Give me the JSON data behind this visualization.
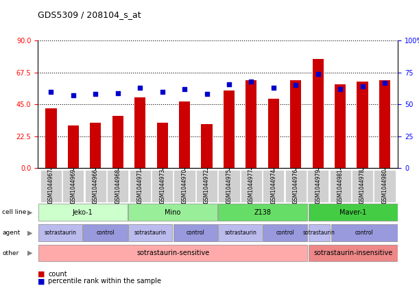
{
  "title": "GDS5309 / 208104_s_at",
  "samples": [
    "GSM1044967",
    "GSM1044969",
    "GSM1044966",
    "GSM1044968",
    "GSM1044971",
    "GSM1044973",
    "GSM1044970",
    "GSM1044972",
    "GSM1044975",
    "GSM1044977",
    "GSM1044974",
    "GSM1044976",
    "GSM1044979",
    "GSM1044981",
    "GSM1044978",
    "GSM1044980"
  ],
  "counts": [
    42,
    30,
    32,
    37,
    50,
    32,
    47,
    31,
    55,
    62,
    49,
    62,
    77,
    59,
    61,
    62
  ],
  "percentiles": [
    60,
    57,
    58,
    59,
    63,
    60,
    62,
    58,
    66,
    68,
    63,
    65,
    74,
    62,
    64,
    67
  ],
  "ylim_left": [
    0,
    90
  ],
  "ylim_right": [
    0,
    100
  ],
  "yticks_left": [
    0,
    22.5,
    45,
    67.5,
    90
  ],
  "yticks_right": [
    0,
    25,
    50,
    75,
    100
  ],
  "bar_color": "#cc0000",
  "dot_color": "#0000cc",
  "cell_line_groups": [
    {
      "label": "Jeko-1",
      "start": 0,
      "end": 3,
      "color": "#ccffcc"
    },
    {
      "label": "Mino",
      "start": 4,
      "end": 7,
      "color": "#99ee99"
    },
    {
      "label": "Z138",
      "start": 8,
      "end": 11,
      "color": "#66dd66"
    },
    {
      "label": "Maver-1",
      "start": 12,
      "end": 15,
      "color": "#44cc44"
    }
  ],
  "agent_groups": [
    {
      "label": "sotrastaurin",
      "start": 0,
      "end": 1,
      "color": "#bbbbee"
    },
    {
      "label": "control",
      "start": 2,
      "end": 3,
      "color": "#9999dd"
    },
    {
      "label": "sotrastaurin",
      "start": 4,
      "end": 5,
      "color": "#bbbbee"
    },
    {
      "label": "control",
      "start": 6,
      "end": 7,
      "color": "#9999dd"
    },
    {
      "label": "sotrastaurin",
      "start": 8,
      "end": 9,
      "color": "#bbbbee"
    },
    {
      "label": "control",
      "start": 10,
      "end": 11,
      "color": "#9999dd"
    },
    {
      "label": "sotrastaurin",
      "start": 12,
      "end": 12,
      "color": "#bbbbee"
    },
    {
      "label": "control",
      "start": 13,
      "end": 15,
      "color": "#9999dd"
    }
  ],
  "other_groups": [
    {
      "label": "sotrastaurin-sensitive",
      "start": 0,
      "end": 11,
      "color": "#ffaaaa"
    },
    {
      "label": "sotrastaurin-insensitive",
      "start": 12,
      "end": 15,
      "color": "#ee8888"
    }
  ],
  "row_labels": [
    "cell line",
    "agent",
    "other"
  ],
  "legend_items": [
    {
      "color": "#cc0000",
      "label": "count"
    },
    {
      "color": "#0000cc",
      "label": "percentile rank within the sample"
    }
  ]
}
